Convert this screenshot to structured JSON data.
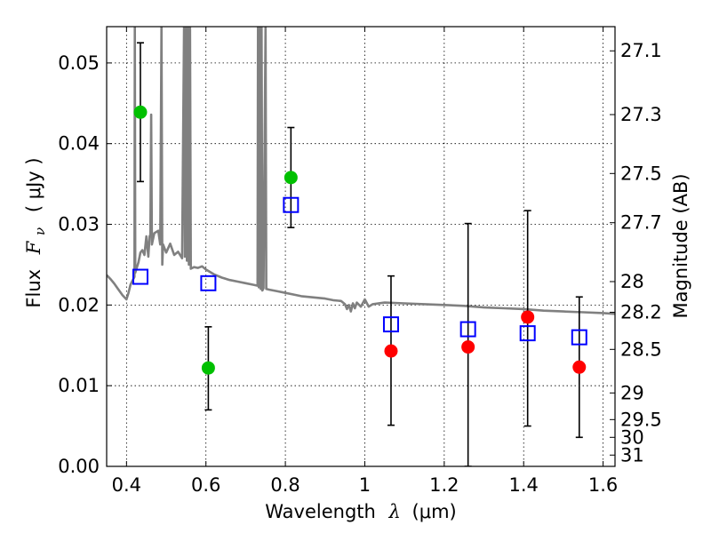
{
  "chart_data": {
    "type": "scatter",
    "xlabel": "Wavelength",
    "xlabel_symbol": "λ",
    "xlabel_unit": "(μm)",
    "ylabel": "Flux",
    "ylabel_symbol": "F",
    "ylabel_subscript": "ν",
    "ylabel_unit": "( μJy )",
    "y2label": "Magnitude (AB)",
    "xlim": [
      0.35,
      1.63
    ],
    "ylim": [
      0.0,
      0.0545
    ],
    "grid": true,
    "x_ticks": [
      0.4,
      0.6,
      0.8,
      1,
      1.2,
      1.4,
      1.6
    ],
    "x_tick_labels": [
      "0.4",
      "0.6",
      "0.8",
      "1",
      "1.2",
      "1.4",
      "1.6"
    ],
    "y_ticks": [
      0.0,
      0.01,
      0.02,
      0.03,
      0.04,
      0.05
    ],
    "y_tick_labels": [
      "0.00",
      "0.01",
      "0.02",
      "0.03",
      "0.04",
      "0.05"
    ],
    "y2_ticks": [
      {
        "label": "27.1",
        "flux": 0.0515
      },
      {
        "label": "27.3",
        "flux": 0.0436
      },
      {
        "label": "27.5",
        "flux": 0.0363
      },
      {
        "label": "27.7",
        "flux": 0.0302
      },
      {
        "label": "28",
        "flux": 0.0229
      },
      {
        "label": "28.2",
        "flux": 0.0191
      },
      {
        "label": "28.5",
        "flux": 0.0145
      },
      {
        "label": "29",
        "flux": 0.0091
      },
      {
        "label": "29.5",
        "flux": 0.0058
      },
      {
        "label": "30",
        "flux": 0.0036
      },
      {
        "label": "31",
        "flux": 0.0014
      }
    ],
    "series": [
      {
        "kind": "model-spectrum",
        "color": "#808080",
        "points": [
          [
            0.35,
            0.0237
          ],
          [
            0.36,
            0.0232
          ],
          [
            0.37,
            0.0226
          ],
          [
            0.38,
            0.0219
          ],
          [
            0.39,
            0.0212
          ],
          [
            0.4,
            0.0207
          ],
          [
            0.405,
            0.0215
          ],
          [
            0.41,
            0.0225
          ],
          [
            0.415,
            0.023
          ],
          [
            0.42,
            0.0235
          ],
          [
            0.421,
            0.0545
          ],
          [
            0.422,
            0.024
          ],
          [
            0.43,
            0.0253
          ],
          [
            0.435,
            0.0265
          ],
          [
            0.44,
            0.0268
          ],
          [
            0.445,
            0.0262
          ],
          [
            0.45,
            0.0285
          ],
          [
            0.455,
            0.026
          ],
          [
            0.458,
            0.0285
          ],
          [
            0.46,
            0.0287
          ],
          [
            0.462,
            0.0436
          ],
          [
            0.464,
            0.0275
          ],
          [
            0.47,
            0.0289
          ],
          [
            0.48,
            0.0292
          ],
          [
            0.485,
            0.0275
          ],
          [
            0.488,
            0.0545
          ],
          [
            0.49,
            0.025
          ],
          [
            0.492,
            0.0275
          ],
          [
            0.5,
            0.0265
          ],
          [
            0.51,
            0.0276
          ],
          [
            0.52,
            0.0262
          ],
          [
            0.53,
            0.0266
          ],
          [
            0.54,
            0.0258
          ],
          [
            0.545,
            0.0545
          ],
          [
            0.547,
            0.026
          ],
          [
            0.55,
            0.0545
          ],
          [
            0.552,
            0.0255
          ],
          [
            0.555,
            0.0545
          ],
          [
            0.557,
            0.025
          ],
          [
            0.56,
            0.0545
          ],
          [
            0.562,
            0.0245
          ],
          [
            0.57,
            0.0247
          ],
          [
            0.58,
            0.0246
          ],
          [
            0.59,
            0.0248
          ],
          [
            0.6,
            0.0244
          ],
          [
            0.62,
            0.0238
          ],
          [
            0.64,
            0.0234
          ],
          [
            0.66,
            0.0231
          ],
          [
            0.68,
            0.0229
          ],
          [
            0.7,
            0.0227
          ],
          [
            0.72,
            0.0225
          ],
          [
            0.73,
            0.0224
          ],
          [
            0.731,
            0.0545
          ],
          [
            0.733,
            0.0222
          ],
          [
            0.736,
            0.0545
          ],
          [
            0.738,
            0.022
          ],
          [
            0.74,
            0.0545
          ],
          [
            0.742,
            0.0218
          ],
          [
            0.745,
            0.0221
          ],
          [
            0.75,
            0.0545
          ],
          [
            0.752,
            0.022
          ],
          [
            0.76,
            0.0219
          ],
          [
            0.78,
            0.0217
          ],
          [
            0.8,
            0.0215
          ],
          [
            0.82,
            0.0213
          ],
          [
            0.84,
            0.0211
          ],
          [
            0.86,
            0.021
          ],
          [
            0.88,
            0.0209
          ],
          [
            0.9,
            0.0208
          ],
          [
            0.92,
            0.0206
          ],
          [
            0.94,
            0.0205
          ],
          [
            0.95,
            0.0201
          ],
          [
            0.955,
            0.0195
          ],
          [
            0.96,
            0.02
          ],
          [
            0.965,
            0.0192
          ],
          [
            0.97,
            0.0202
          ],
          [
            0.975,
            0.0196
          ],
          [
            0.98,
            0.0203
          ],
          [
            0.99,
            0.0198
          ],
          [
            1.0,
            0.0207
          ],
          [
            1.01,
            0.0198
          ],
          [
            1.02,
            0.0201
          ],
          [
            1.05,
            0.0203
          ],
          [
            1.1,
            0.0202
          ],
          [
            1.15,
            0.0201
          ],
          [
            1.2,
            0.02
          ],
          [
            1.25,
            0.0199
          ],
          [
            1.3,
            0.0197
          ],
          [
            1.35,
            0.0196
          ],
          [
            1.4,
            0.0195
          ],
          [
            1.45,
            0.0193
          ],
          [
            1.5,
            0.0192
          ],
          [
            1.55,
            0.0191
          ],
          [
            1.6,
            0.019
          ],
          [
            1.63,
            0.0189
          ]
        ]
      },
      {
        "kind": "model-photometry",
        "marker": "open-square",
        "color": "#0000ff",
        "points": [
          {
            "x": 0.435,
            "y": 0.0235
          },
          {
            "x": 0.606,
            "y": 0.0227
          },
          {
            "x": 0.814,
            "y": 0.0324
          },
          {
            "x": 1.066,
            "y": 0.0176
          },
          {
            "x": 1.26,
            "y": 0.017
          },
          {
            "x": 1.41,
            "y": 0.0165
          },
          {
            "x": 1.54,
            "y": 0.016
          }
        ]
      },
      {
        "kind": "observed-optical",
        "marker": "filled-circle",
        "color": "#00c000",
        "points": [
          {
            "x": 0.435,
            "y": 0.0439,
            "lo": 0.0353,
            "hi": 0.0525
          },
          {
            "x": 0.606,
            "y": 0.0122,
            "lo": 0.007,
            "hi": 0.0173
          },
          {
            "x": 0.814,
            "y": 0.0358,
            "lo": 0.0296,
            "hi": 0.042
          }
        ]
      },
      {
        "kind": "observed-ir",
        "marker": "filled-circle",
        "color": "#ff0000",
        "points": [
          {
            "x": 1.066,
            "y": 0.0143,
            "lo": 0.0051,
            "hi": 0.0236
          },
          {
            "x": 1.26,
            "y": 0.0148,
            "lo": 0.0,
            "hi": 0.0301
          },
          {
            "x": 1.41,
            "y": 0.0185,
            "lo": 0.005,
            "hi": 0.0317
          },
          {
            "x": 1.54,
            "y": 0.0123,
            "lo": 0.0036,
            "hi": 0.021
          }
        ]
      }
    ]
  }
}
